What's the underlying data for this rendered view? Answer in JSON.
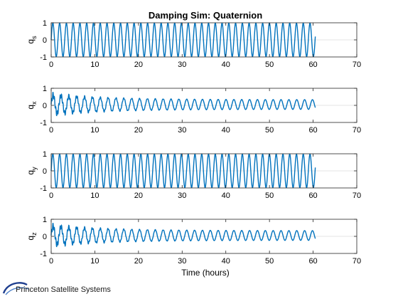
{
  "title": "Damping Sim: Quaternion",
  "xlabel": "Time (hours)",
  "logo_text": "Princeton Satellite Systems",
  "colors": {
    "line": "#0072BD",
    "axis": "#262626",
    "grid": "#e6e6e6"
  },
  "chart_data": [
    {
      "type": "line",
      "ylabel": "q_s",
      "xlim": [
        0,
        70
      ],
      "ylim": [
        -1,
        1
      ],
      "xticks": [
        0,
        10,
        20,
        30,
        40,
        50,
        60,
        70
      ],
      "yticks": [
        -1,
        0,
        1
      ],
      "series": [
        {
          "x_range": [
            0,
            60.5
          ],
          "period_hours": 1.55,
          "amplitude": [
            0.98,
            0.98
          ],
          "amp_start": [
            0.98,
            0.98
          ],
          "offset": 0,
          "pattern": "steady"
        }
      ]
    },
    {
      "type": "line",
      "ylabel": "q_x",
      "xlim": [
        0,
        70
      ],
      "ylim": [
        -1,
        1
      ],
      "xticks": [
        0,
        10,
        20,
        30,
        40,
        50,
        60,
        70
      ],
      "yticks": [
        -1,
        0,
        1
      ],
      "series": [
        {
          "x_range": [
            0,
            60.5
          ],
          "period_hours": 1.8,
          "amp_start": 0.7,
          "amp_end": 0.35,
          "offset": 0.05,
          "pattern": "damped"
        }
      ]
    },
    {
      "type": "line",
      "ylabel": "q_y",
      "xlim": [
        0,
        70
      ],
      "ylim": [
        -1,
        1
      ],
      "xticks": [
        0,
        10,
        20,
        30,
        40,
        50,
        60,
        70
      ],
      "yticks": [
        -1,
        0,
        1
      ],
      "series": [
        {
          "x_range": [
            0,
            60.5
          ],
          "period_hours": 1.55,
          "amplitude": [
            0.98,
            0.98
          ],
          "amp_start": [
            0.98,
            0.98
          ],
          "offset": 0,
          "pattern": "steady"
        }
      ]
    },
    {
      "type": "line",
      "ylabel": "q_z",
      "xlim": [
        0,
        70
      ],
      "ylim": [
        -1,
        1
      ],
      "xticks": [
        0,
        10,
        20,
        30,
        40,
        50,
        60,
        70
      ],
      "yticks": [
        -1,
        0,
        1
      ],
      "series": [
        {
          "x_range": [
            0,
            60.5
          ],
          "period_hours": 1.8,
          "amp_start": 0.7,
          "amp_end": 0.35,
          "offset": 0.05,
          "pattern": "damped"
        }
      ]
    }
  ]
}
